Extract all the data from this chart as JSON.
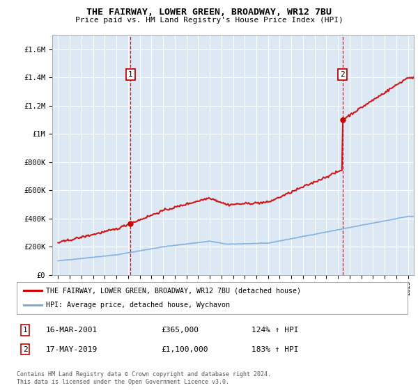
{
  "title": "THE FAIRWAY, LOWER GREEN, BROADWAY, WR12 7BU",
  "subtitle": "Price paid vs. HM Land Registry's House Price Index (HPI)",
  "background_color": "#dce9f5",
  "grid_color": "#ffffff",
  "red_line_color": "#cc0000",
  "blue_line_color": "#7aabdb",
  "ann1_x": 2001.21,
  "ann1_y": 365000,
  "ann2_x": 2019.38,
  "ann2_y": 1100000,
  "legend_label_red": "THE FAIRWAY, LOWER GREEN, BROADWAY, WR12 7BU (detached house)",
  "legend_label_blue": "HPI: Average price, detached house, Wychavon",
  "ylim": [
    0,
    1700000
  ],
  "xlim": [
    1994.5,
    2025.5
  ],
  "yticks": [
    0,
    200000,
    400000,
    600000,
    800000,
    1000000,
    1200000,
    1400000,
    1600000
  ],
  "ytick_labels": [
    "£0",
    "£200K",
    "£400K",
    "£600K",
    "£800K",
    "£1M",
    "£1.2M",
    "£1.4M",
    "£1.6M"
  ],
  "footer": "Contains HM Land Registry data © Crown copyright and database right 2024.\nThis data is licensed under the Open Government Licence v3.0."
}
